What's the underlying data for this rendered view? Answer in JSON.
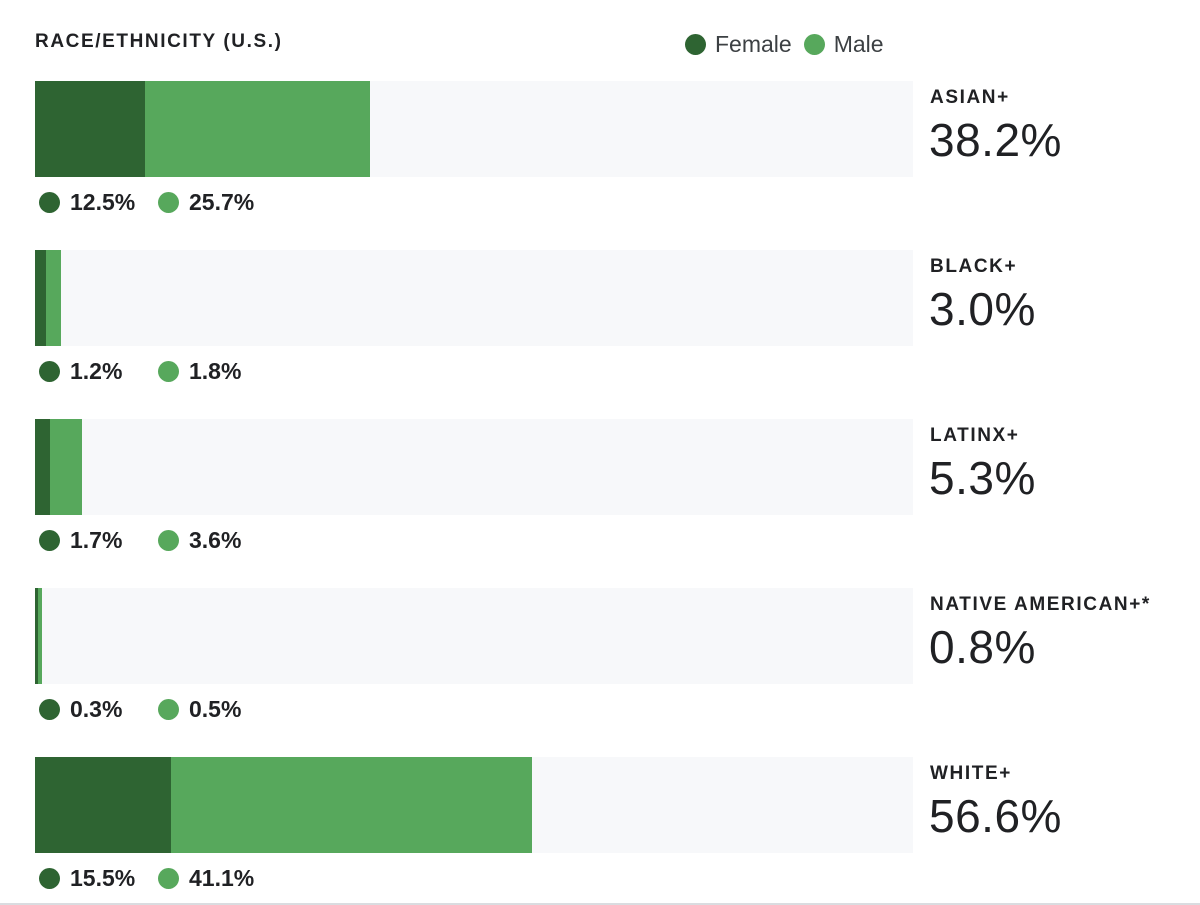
{
  "title": "RACE/ETHNICITY (U.S.)",
  "legend": {
    "female": "Female",
    "male": "Male"
  },
  "colors": {
    "female": "#2e6432",
    "male": "#57a85c",
    "track": "#f7f8fa"
  },
  "chart_data": {
    "type": "bar",
    "orientation": "horizontal",
    "stacked": true,
    "title": "RACE/ETHNICITY (U.S.)",
    "xlim": [
      0,
      100
    ],
    "legend_position": "top-right",
    "categories": [
      "ASIAN+",
      "BLACK+",
      "LATINX+",
      "NATIVE AMERICAN+*",
      "WHITE+"
    ],
    "totals": [
      "38.2%",
      "3.0%",
      "5.3%",
      "0.8%",
      "56.6%"
    ],
    "series": [
      {
        "name": "Female",
        "values": [
          12.5,
          1.2,
          1.7,
          0.3,
          15.5
        ],
        "labels": [
          "12.5%",
          "1.2%",
          "1.7%",
          "0.3%",
          "15.5%"
        ]
      },
      {
        "name": "Male",
        "values": [
          25.7,
          1.8,
          3.6,
          0.5,
          41.1
        ],
        "labels": [
          "25.7%",
          "1.8%",
          "3.6%",
          "0.5%",
          "41.1%"
        ]
      }
    ]
  }
}
